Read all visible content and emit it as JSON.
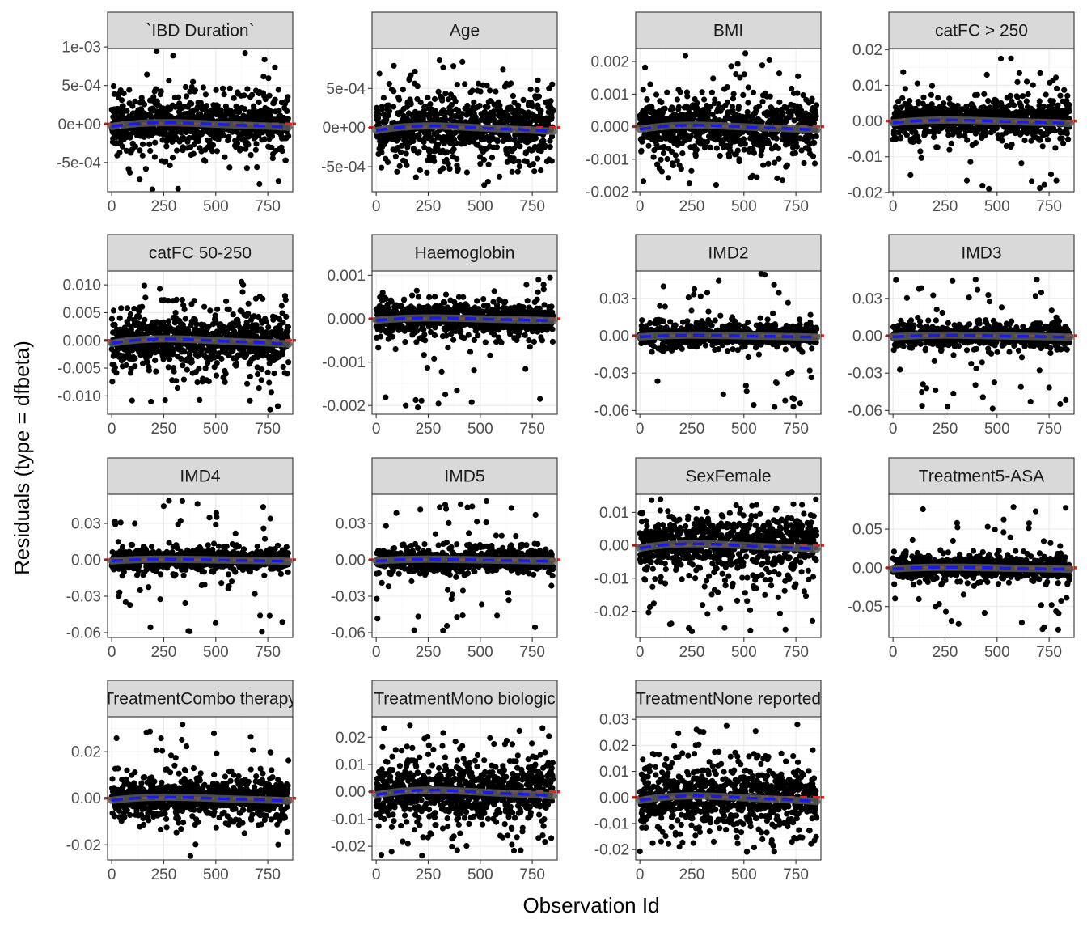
{
  "chart_data": {
    "type": "scatter",
    "layout": "facet-wrap-4-cols",
    "xlabel": "Observation Id",
    "ylabel": "Residuals (type = dfbeta)",
    "xlim": [
      -20,
      870
    ],
    "x_ticks": [
      0,
      250,
      500,
      750
    ],
    "n_observations": 850,
    "colors": {
      "points": "#000000",
      "reference_line": "#e8231b",
      "smooth_line": "#1a1ae6",
      "smooth_band": "#595959",
      "strip": "#d9d9d9"
    },
    "grid": true,
    "facets": [
      {
        "label": "`IBD Duration`",
        "ylim": [
          -0.00088,
          0.00098
        ],
        "y_ticks": [
          -0.0005,
          0,
          0.0005,
          0.001
        ],
        "y_tick_labels": [
          "-5e-04",
          "0e+00",
          "5e-04",
          "1e-03"
        ],
        "core_half_width": 0.00022,
        "sparse_min": -0.00085,
        "sparse_max": 0.00097,
        "skew": 0
      },
      {
        "label": "Age",
        "ylim": [
          -0.00082,
          0.00101
        ],
        "y_ticks": [
          -0.0005,
          0,
          0.0005
        ],
        "y_tick_labels": [
          "-5e-04",
          "0e+00",
          "5e-04"
        ],
        "core_half_width": 0.00026,
        "sparse_min": -0.00075,
        "sparse_max": 0.00088,
        "skew": 0
      },
      {
        "label": "BMI",
        "ylim": [
          -0.002,
          0.0024
        ],
        "y_ticks": [
          -0.002,
          -0.001,
          0,
          0.001,
          0.002
        ],
        "y_tick_labels": [
          "-0.002",
          "-0.001",
          "0.000",
          "0.001",
          "0.002"
        ],
        "core_half_width": 0.00055,
        "sparse_min": -0.0018,
        "sparse_max": 0.0023,
        "skew": 0
      },
      {
        "label": "catFC > 250",
        "ylim": [
          -0.0198,
          0.0203
        ],
        "y_ticks": [
          -0.02,
          -0.01,
          0,
          0.01,
          0.02
        ],
        "y_tick_labels": [
          "-0.02",
          "-0.01",
          "0.00",
          "0.01",
          "0.02"
        ],
        "core_half_width": 0.0035,
        "sparse_min": -0.019,
        "sparse_max": 0.018,
        "skew": 0.0015
      },
      {
        "label": "catFC 50-250",
        "ylim": [
          -0.0133,
          0.0125
        ],
        "y_ticks": [
          -0.01,
          -0.005,
          0,
          0.005,
          0.01
        ],
        "y_tick_labels": [
          "-0.010",
          "-0.005",
          "0.000",
          "0.005",
          "0.010"
        ],
        "core_half_width": 0.0035,
        "sparse_min": -0.0125,
        "sparse_max": 0.0115,
        "skew": 0
      },
      {
        "label": "Haemoglobin",
        "ylim": [
          -0.0022,
          0.0011
        ],
        "y_ticks": [
          -0.002,
          -0.001,
          0,
          0.001
        ],
        "y_tick_labels": [
          "-0.002",
          "-0.001",
          "0.000",
          "0.001"
        ],
        "core_half_width": 0.00025,
        "sparse_min": -0.0021,
        "sparse_max": 0.001,
        "skew": 0
      },
      {
        "label": "IMD2",
        "ylim": [
          -0.063,
          0.052
        ],
        "y_ticks": [
          -0.06,
          -0.03,
          0,
          0.03
        ],
        "y_tick_labels": [
          "-0.06",
          "-0.03",
          "0.00",
          "0.03"
        ],
        "core_half_width": 0.006,
        "sparse_min": -0.06,
        "sparse_max": 0.05,
        "skew": 0
      },
      {
        "label": "IMD3",
        "ylim": [
          -0.063,
          0.052
        ],
        "y_ticks": [
          -0.06,
          -0.03,
          0,
          0.03
        ],
        "y_tick_labels": [
          "-0.06",
          "-0.03",
          "0.00",
          "0.03"
        ],
        "core_half_width": 0.006,
        "sparse_min": -0.06,
        "sparse_max": 0.05,
        "skew": 0
      },
      {
        "label": "IMD4",
        "ylim": [
          -0.064,
          0.054
        ],
        "y_ticks": [
          -0.06,
          -0.03,
          0,
          0.03
        ],
        "y_tick_labels": [
          "-0.06",
          "-0.03",
          "0.00",
          "0.03"
        ],
        "core_half_width": 0.006,
        "sparse_min": -0.06,
        "sparse_max": 0.05,
        "skew": 0
      },
      {
        "label": "IMD5",
        "ylim": [
          -0.064,
          0.054
        ],
        "y_ticks": [
          -0.06,
          -0.03,
          0,
          0.03
        ],
        "y_tick_labels": [
          "-0.06",
          "-0.03",
          "0.00",
          "0.03"
        ],
        "core_half_width": 0.006,
        "sparse_min": -0.06,
        "sparse_max": 0.052,
        "skew": 0
      },
      {
        "label": "SexFemale",
        "ylim": [
          -0.028,
          0.0155
        ],
        "y_ticks": [
          -0.02,
          -0.01,
          0,
          0.01
        ],
        "y_tick_labels": [
          "-0.02",
          "-0.01",
          "0.00",
          "0.01"
        ],
        "core_half_width": 0.006,
        "sparse_min": -0.027,
        "sparse_max": 0.014,
        "skew": 0.003
      },
      {
        "label": "Treatment5-ASA",
        "ylim": [
          -0.09,
          0.095
        ],
        "y_ticks": [
          -0.05,
          0,
          0.05
        ],
        "y_tick_labels": [
          "-0.05",
          "0.00",
          "0.05"
        ],
        "core_half_width": 0.01,
        "sparse_min": -0.085,
        "sparse_max": 0.085,
        "skew": 0
      },
      {
        "label": "TreatmentCombo therapy",
        "ylim": [
          -0.0265,
          0.035
        ],
        "y_ticks": [
          -0.02,
          0,
          0.02
        ],
        "y_tick_labels": [
          "-0.02",
          "0.00",
          "0.02"
        ],
        "core_half_width": 0.006,
        "sparse_min": -0.025,
        "sparse_max": 0.034,
        "skew": 0
      },
      {
        "label": "TreatmentMono biologic",
        "ylim": [
          -0.025,
          0.0275
        ],
        "y_ticks": [
          -0.02,
          -0.01,
          0,
          0.01,
          0.02
        ],
        "y_tick_labels": [
          "-0.02",
          "-0.01",
          "0.00",
          "0.01",
          "0.02"
        ],
        "core_half_width": 0.008,
        "sparse_min": -0.0235,
        "sparse_max": 0.025,
        "skew": 0
      },
      {
        "label": "TreatmentNone reported",
        "ylim": [
          -0.024,
          0.031
        ],
        "y_ticks": [
          -0.02,
          -0.01,
          0,
          0.01,
          0.02,
          0.03
        ],
        "y_tick_labels": [
          "-0.02",
          "-0.01",
          "0.00",
          "0.01",
          "0.02",
          "0.03"
        ],
        "core_half_width": 0.008,
        "sparse_min": -0.0225,
        "sparse_max": 0.029,
        "skew": 0
      }
    ]
  }
}
